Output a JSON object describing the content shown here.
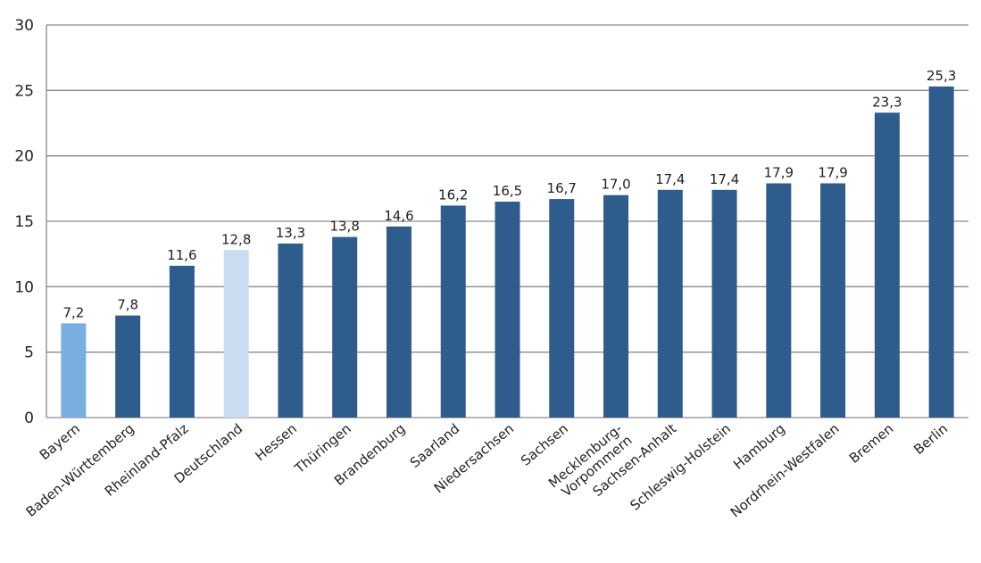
{
  "chart_data": {
    "type": "bar",
    "title": "",
    "xlabel": "",
    "ylabel": "",
    "ylim": [
      0,
      30
    ],
    "yticks": [
      "0",
      "5",
      "10",
      "15",
      "20",
      "25",
      "30"
    ],
    "grid": true,
    "categories": [
      "Bayern",
      "Baden-Württemberg",
      "Rheinland-Pfalz",
      "Deutschland",
      "Hessen",
      "Thüringen",
      "Brandenburg",
      "Saarland",
      "Niedersachsen",
      "Sachsen",
      "Mecklenburg-\nVorpommern",
      "Sachsen-Anhalt",
      "Schleswig-Holstein",
      "Hamburg",
      "Nordrhein-Westfalen",
      "Bremen",
      "Berlin"
    ],
    "values": [
      7.2,
      7.8,
      11.6,
      12.8,
      13.3,
      13.8,
      14.6,
      16.2,
      16.5,
      16.7,
      17.0,
      17.4,
      17.4,
      17.9,
      17.9,
      23.3,
      25.3
    ],
    "value_labels": [
      "7,2",
      "7,8",
      "11,6",
      "12,8",
      "13,3",
      "13,8",
      "14,6",
      "16,2",
      "16,5",
      "16,7",
      "17,0",
      "17,4",
      "17,4",
      "17,9",
      "17,9",
      "23,3",
      "25,3"
    ],
    "colors": {
      "default": "#2e5c8c",
      "Bayern": "#79aee0",
      "Deutschland": "#c8dcf2"
    }
  }
}
